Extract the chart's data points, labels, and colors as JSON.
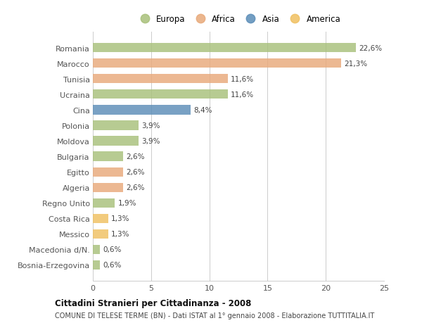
{
  "categories": [
    "Romania",
    "Marocco",
    "Tunisia",
    "Ucraina",
    "Cina",
    "Polonia",
    "Moldova",
    "Bulgaria",
    "Egitto",
    "Algeria",
    "Regno Unito",
    "Costa Rica",
    "Messico",
    "Macedonia d/N.",
    "Bosnia-Erzegovina"
  ],
  "values": [
    22.6,
    21.3,
    11.6,
    11.6,
    8.4,
    3.9,
    3.9,
    2.6,
    2.6,
    2.6,
    1.9,
    1.3,
    1.3,
    0.6,
    0.6
  ],
  "labels": [
    "22,6%",
    "21,3%",
    "11,6%",
    "11,6%",
    "8,4%",
    "3,9%",
    "3,9%",
    "2,6%",
    "2,6%",
    "2,6%",
    "1,9%",
    "1,3%",
    "1,3%",
    "0,6%",
    "0,6%"
  ],
  "continents": [
    "Europa",
    "Africa",
    "Africa",
    "Europa",
    "Asia",
    "Europa",
    "Europa",
    "Europa",
    "Africa",
    "Africa",
    "Europa",
    "America",
    "America",
    "Europa",
    "Europa"
  ],
  "colors": {
    "Europa": "#a8c07a",
    "Africa": "#e8a97a",
    "Asia": "#5b8db8",
    "America": "#f0c060"
  },
  "legend_order": [
    "Europa",
    "Africa",
    "Asia",
    "America"
  ],
  "title1": "Cittadini Stranieri per Cittadinanza - 2008",
  "title2": "COMUNE DI TELESE TERME (BN) - Dati ISTAT al 1° gennaio 2008 - Elaborazione TUTTITALIA.IT",
  "xlim": [
    0,
    25
  ],
  "xticks": [
    0,
    5,
    10,
    15,
    20,
    25
  ],
  "background_color": "#ffffff",
  "grid_color": "#cccccc",
  "bar_height": 0.6
}
